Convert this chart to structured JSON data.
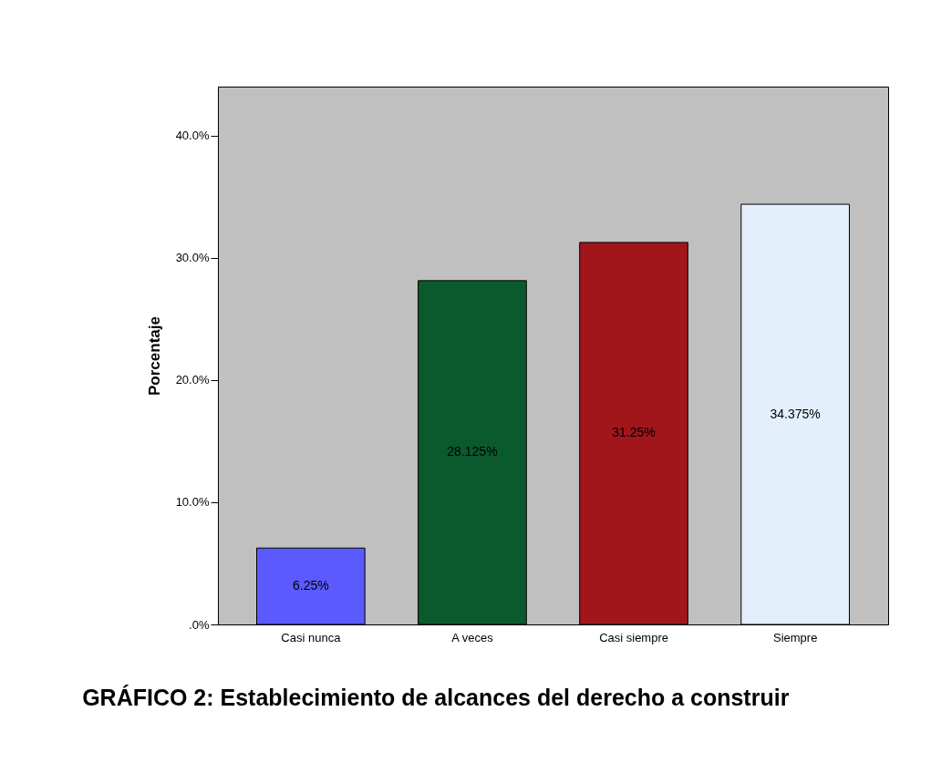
{
  "chart_data": {
    "type": "bar",
    "title": "GRÁFICO 2: Establecimiento de alcances del derecho a construir",
    "ylabel": "Porcentaje",
    "categories": [
      "Casi nunca",
      "A veces",
      "Casi siempre",
      "Siempre"
    ],
    "values": [
      6.25,
      28.125,
      31.25,
      34.375
    ],
    "colors": [
      "#5a5aff",
      "#0b5a2e",
      "#a0161a",
      "#e3effb"
    ],
    "value_labels": [
      "6.25%",
      "28.125%",
      "31.25%",
      "34.375%"
    ],
    "ylim": [
      0,
      44
    ],
    "yticks": [
      {
        "value": 0,
        "label": ".0%"
      },
      {
        "value": 10,
        "label": "10.0%"
      },
      {
        "value": 20,
        "label": "20.0%"
      },
      {
        "value": 30,
        "label": "30.0%"
      },
      {
        "value": 40,
        "label": "40.0%"
      }
    ],
    "grid": false
  }
}
